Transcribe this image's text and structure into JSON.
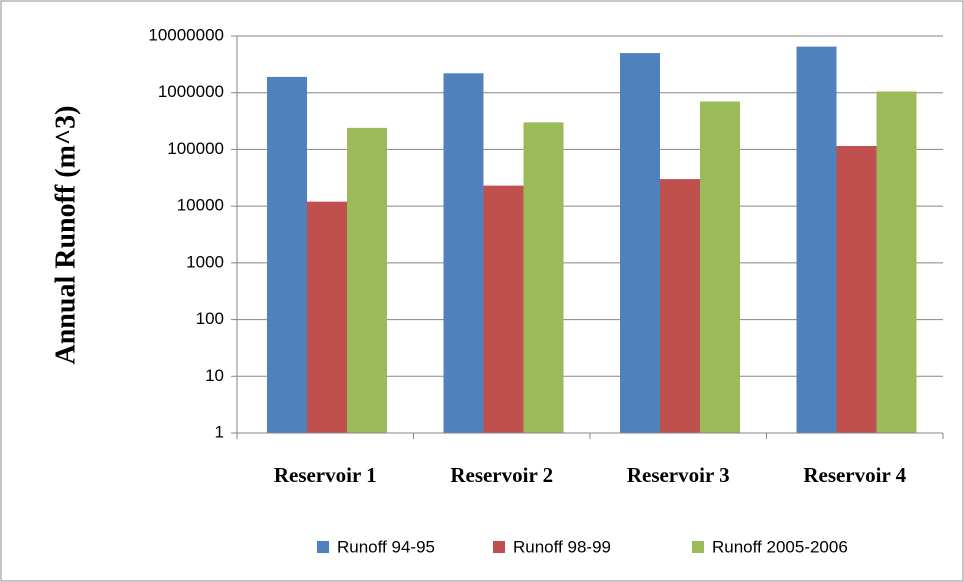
{
  "chart_data": {
    "type": "bar",
    "y_label": "Annual Runoff (m^3)",
    "categories": [
      "Reservoir 1",
      "Reservoir 2",
      "Reservoir 3",
      "Reservoir 4"
    ],
    "series": [
      {
        "name": "Runoff 94-95",
        "color": "#4f81bd",
        "values": [
          1900000,
          2200000,
          5000000,
          6500000
        ]
      },
      {
        "name": "Runoff 98-99",
        "color": "#c0504d",
        "values": [
          12000,
          23000,
          30000,
          115000
        ]
      },
      {
        "name": "Runoff 2005-2006",
        "color": "#9bbb59",
        "values": [
          240000,
          300000,
          700000,
          1050000
        ]
      }
    ],
    "ylim": [
      1,
      10000000
    ],
    "yticks": [
      1,
      10,
      100,
      1000,
      10000,
      100000,
      1000000,
      10000000
    ],
    "log_scale": true,
    "grid": true,
    "legend": "bottom"
  }
}
